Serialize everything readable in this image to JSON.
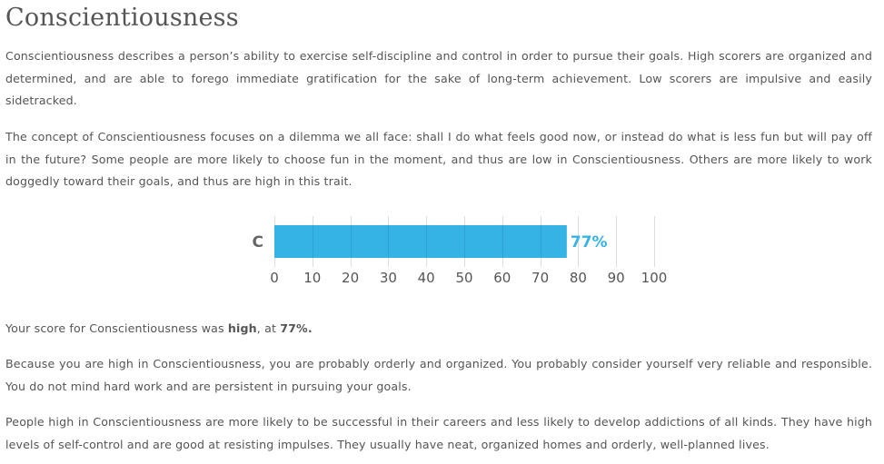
{
  "title": "Conscientiousness",
  "paragraphs": {
    "p1": "Conscientiousness describes a person’s ability to exercise self-discipline and control in order to pursue their goals. High scorers are organized and determined, and are able to forego immediate gratification for the sake of long-term achievement. Low scorers are impulsive and easily sidetracked.",
    "p2": "The concept of Conscientiousness focuses on a dilemma we all face: shall I do what feels good now, or instead do what is less fun but will pay off in the future? Some people are more likely to choose fun in the moment, and thus are low in Conscientiousness. Others are more likely to work doggedly toward their goals, and thus are high in this trait.",
    "p3": "Because you are high in Conscientiousness, you are probably orderly and organized. You probably consider yourself very reliable and responsible. You do not mind hard work and are persistent in pursuing your goals.",
    "p4": "People high in Conscientiousness are more likely to be successful in their careers and less likely to develop addictions of all kinds. They have high levels of self-control and are good at resisting impulses. They usually have neat, organized homes and orderly, well-planned lives."
  },
  "score_sentence": {
    "prefix": "Your score for Conscientiousness was ",
    "level": "high",
    "middle": ", at ",
    "value": "77%."
  },
  "chart_data": {
    "type": "bar",
    "orientation": "horizontal",
    "categories": [
      "C"
    ],
    "values": [
      77
    ],
    "value_labels": [
      "77%"
    ],
    "xlim": [
      0,
      100
    ],
    "xticks": [
      "0",
      "10",
      "20",
      "30",
      "40",
      "50",
      "60",
      "70",
      "80",
      "90",
      "100"
    ],
    "grid": true,
    "bar_color": "#35b3e5",
    "label_color": "#35b3e5"
  }
}
